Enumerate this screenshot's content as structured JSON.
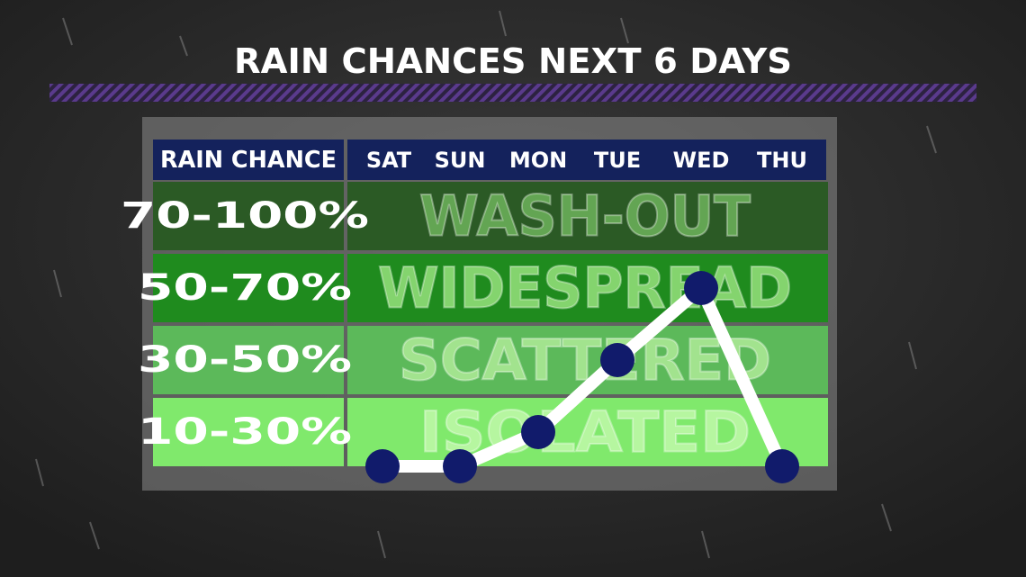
{
  "chart_data": {
    "type": "line",
    "title": "RAIN CHANCES NEXT 6 DAYS",
    "header": "RAIN CHANCE",
    "categories": [
      "SAT",
      "SUN",
      "MON",
      "TUE",
      "WED",
      "THU"
    ],
    "values": [
      10,
      10,
      20,
      40,
      60,
      10
    ],
    "bands": [
      {
        "label": "70-100%",
        "name": "WASH-OUT",
        "color": "#2b5a25",
        "text_color": "#63a553"
      },
      {
        "label": "50-70%",
        "name": "WIDESPREAD",
        "color": "#1f8b1e",
        "text_color": "#84d46e"
      },
      {
        "label": "30-50%",
        "name": "SCATTERED",
        "color": "#5cb95a",
        "text_color": "#a2e38e"
      },
      {
        "label": "10-30%",
        "name": "ISOLATED",
        "color": "#80e96c",
        "text_color": "#b6f6a0"
      }
    ],
    "line_color": "#ffffff",
    "marker_color": "#111b6b",
    "header_color": "#14225c"
  }
}
